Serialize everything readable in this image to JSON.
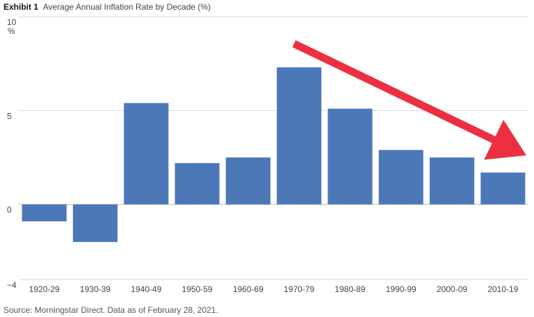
{
  "header": {
    "lead": "Exhibit 1",
    "title": "Average Annual Inflation Rate by Decade (%)"
  },
  "source": "Source: Morningstar Direct.  Data as of February 28, 2021.",
  "colors": {
    "bar": "#4d78b8",
    "arrow": "#ec3042",
    "grid": "#d9d9d9",
    "baseline": "#bbbbbb"
  },
  "chart_data": {
    "type": "bar",
    "title": "Average Annual Inflation Rate by Decade (%)",
    "xlabel": "",
    "ylabel": "",
    "y_unit": "%",
    "categories": [
      "1920-29",
      "1930-39",
      "1940-49",
      "1950-59",
      "1960-69",
      "1970-79",
      "1980-89",
      "1990-99",
      "2000-09",
      "2010-19"
    ],
    "values": [
      -0.9,
      -2.0,
      5.4,
      2.2,
      2.5,
      7.3,
      5.1,
      2.9,
      2.5,
      1.7
    ],
    "ylim": [
      -4,
      10
    ],
    "yticks": [
      10,
      5,
      0,
      -4
    ],
    "ytick_labels": [
      "10",
      "5",
      "0",
      "−4"
    ],
    "grid": true,
    "legend": "none",
    "annotations": [
      {
        "type": "arrow",
        "description": "red downward trend arrow",
        "from_category": "1970-79",
        "to_category": "2010-19"
      }
    ]
  }
}
